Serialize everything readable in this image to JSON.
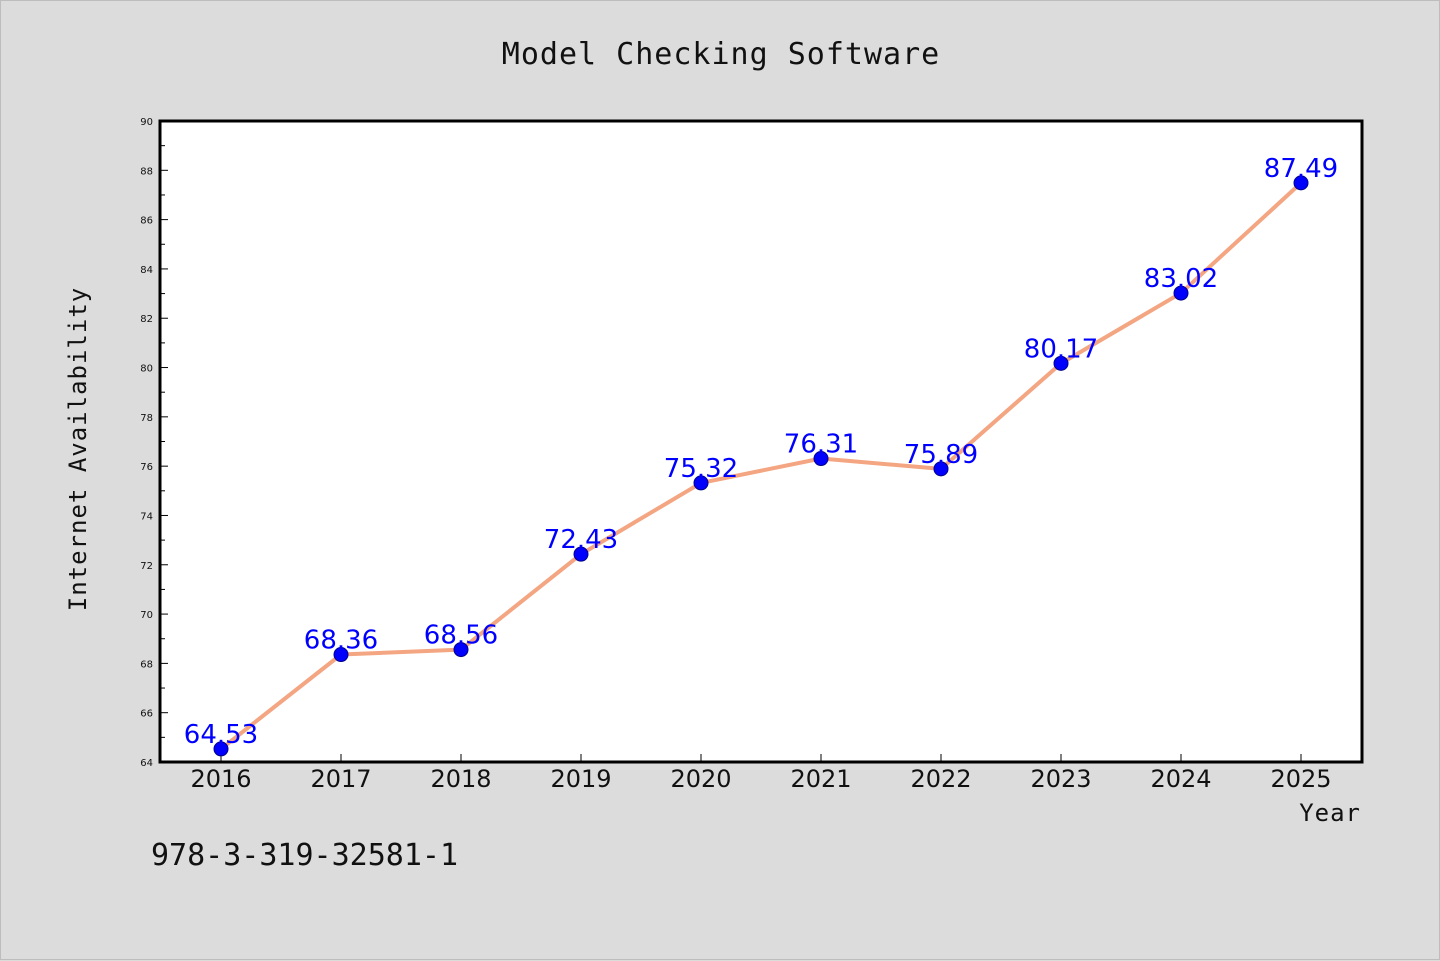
{
  "chart_data": {
    "type": "line",
    "title": "Model Checking Software",
    "xlabel": "Year",
    "ylabel": "Internet Availability",
    "categories": [
      "2016",
      "2017",
      "2018",
      "2019",
      "2020",
      "2021",
      "2022",
      "2023",
      "2024",
      "2025"
    ],
    "series": [
      {
        "values": [
          64.53,
          68.36,
          68.56,
          72.43,
          75.32,
          76.31,
          75.89,
          80.17,
          83.02,
          87.49
        ],
        "data_labels": [
          "64.53",
          "68.36",
          "68.56",
          "72.43",
          "75.32",
          "76.31",
          "75.89",
          "80.17",
          "83.02",
          "87.49"
        ],
        "line_color": "#f4a582",
        "marker_color": "#0000ff"
      }
    ],
    "ylim": [
      64,
      90
    ],
    "yticks": [
      64,
      66,
      68,
      70,
      72,
      74,
      76,
      78,
      80,
      82,
      84,
      86,
      88,
      90
    ],
    "ytick_labels": [
      "64",
      "66",
      "68",
      "70",
      "72",
      "74",
      "76",
      "78",
      "80",
      "82",
      "84",
      "86",
      "88",
      "90"
    ],
    "grid": false,
    "legend": "none"
  },
  "footnote": "978-3-319-32581-1",
  "colors": {
    "background": "#dcdcdc",
    "plot_background": "#ffffff",
    "line": "#f4a582",
    "marker": "#0000ff",
    "data_label": "#0000ff"
  }
}
